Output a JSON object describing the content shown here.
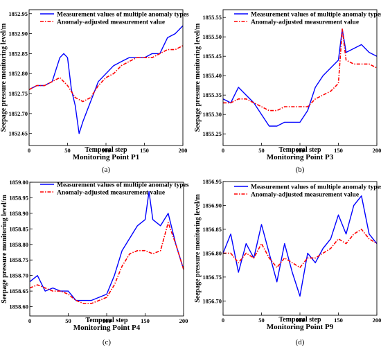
{
  "chart_data": [
    {
      "type": "line",
      "label": "(a)",
      "title": "Monitoring Point P1",
      "xlabel": "Temporal step",
      "ylabel": "Seepage pressure monitoring level/m",
      "xlim": [
        0,
        200
      ],
      "ylim": [
        1852.62,
        1852.96
      ],
      "xticks": [
        0,
        50,
        100,
        150,
        200
      ],
      "yticks": [
        1852.65,
        1852.7,
        1852.75,
        1852.8,
        1852.85,
        1852.9,
        1852.95
      ],
      "ytick_labels": [
        "1852.65",
        "1852.70",
        "1852.75",
        "1852.80",
        "1852.85",
        "1852.90",
        "1852.95"
      ],
      "series": [
        {
          "name": "Measurement values of multiple anomaly types",
          "color": "#0000ff",
          "style": "solid",
          "x": [
            0,
            10,
            20,
            30,
            40,
            45,
            50,
            55,
            60,
            65,
            70,
            80,
            90,
            100,
            110,
            120,
            130,
            140,
            150,
            160,
            170,
            180,
            190,
            200
          ],
          "y": [
            1852.76,
            1852.77,
            1852.77,
            1852.78,
            1852.84,
            1852.85,
            1852.84,
            1852.76,
            1852.72,
            1852.65,
            1852.68,
            1852.73,
            1852.78,
            1852.8,
            1852.82,
            1852.83,
            1852.84,
            1852.84,
            1852.84,
            1852.85,
            1852.85,
            1852.89,
            1852.9,
            1852.92
          ]
        },
        {
          "name": "Anomaly-adjusted measurement value",
          "color": "#ff0000",
          "style": "dashdot",
          "x": [
            0,
            10,
            20,
            30,
            40,
            50,
            60,
            70,
            80,
            90,
            100,
            110,
            120,
            130,
            140,
            150,
            160,
            170,
            180,
            190,
            200
          ],
          "y": [
            1852.76,
            1852.77,
            1852.77,
            1852.78,
            1852.79,
            1852.77,
            1852.74,
            1852.73,
            1852.74,
            1852.77,
            1852.79,
            1852.8,
            1852.82,
            1852.83,
            1852.84,
            1852.84,
            1852.84,
            1852.85,
            1852.86,
            1852.86,
            1852.87
          ]
        }
      ]
    },
    {
      "type": "line",
      "label": "(b)",
      "title": "Monitoring Point P3",
      "xlabel": "Temporal step",
      "ylabel": "Seepage pressure monitoring level/m",
      "xlim": [
        0,
        200
      ],
      "ylim": [
        1855.22,
        1855.57
      ],
      "xticks": [
        0,
        50,
        100,
        150,
        200
      ],
      "yticks": [
        1855.25,
        1855.3,
        1855.35,
        1855.4,
        1855.45,
        1855.5,
        1855.55
      ],
      "ytick_labels": [
        "1855.25",
        "1855.30",
        "1855.35",
        "1855.40",
        "1855.45",
        "1855.50",
        "1855.55"
      ],
      "series": [
        {
          "name": "Measurement values of multiple anomaly types",
          "color": "#0000ff",
          "style": "solid",
          "x": [
            0,
            10,
            20,
            30,
            40,
            50,
            60,
            70,
            80,
            90,
            100,
            110,
            120,
            130,
            140,
            150,
            155,
            160,
            170,
            180,
            190,
            200
          ],
          "y": [
            1855.34,
            1855.33,
            1855.37,
            1855.35,
            1855.33,
            1855.3,
            1855.27,
            1855.27,
            1855.28,
            1855.28,
            1855.28,
            1855.31,
            1855.37,
            1855.4,
            1855.42,
            1855.44,
            1855.52,
            1855.46,
            1855.47,
            1855.48,
            1855.46,
            1855.45
          ]
        },
        {
          "name": "Anomaly-adjusted measurement value",
          "color": "#ff0000",
          "style": "dashdot",
          "x": [
            0,
            10,
            20,
            30,
            40,
            50,
            60,
            70,
            80,
            90,
            100,
            110,
            120,
            130,
            140,
            150,
            155,
            160,
            170,
            180,
            190,
            200
          ],
          "y": [
            1855.33,
            1855.33,
            1855.34,
            1855.34,
            1855.33,
            1855.32,
            1855.31,
            1855.31,
            1855.32,
            1855.32,
            1855.32,
            1855.32,
            1855.34,
            1855.35,
            1855.36,
            1855.38,
            1855.52,
            1855.44,
            1855.43,
            1855.43,
            1855.43,
            1855.42
          ]
        }
      ]
    },
    {
      "type": "line",
      "label": "(c)",
      "title": "Monitoring Point P4",
      "xlabel": "Temporal step",
      "ylabel": "Seepage pressure monitoring level/m",
      "xlim": [
        0,
        200
      ],
      "ylim": [
        1858.57,
        1859.0
      ],
      "xticks": [
        0,
        50,
        100,
        150,
        200
      ],
      "yticks": [
        1858.6,
        1858.65,
        1858.7,
        1858.75,
        1858.8,
        1858.85,
        1858.9,
        1858.95,
        1859.0
      ],
      "ytick_labels": [
        "1858.60",
        "1858.65",
        "1858.70",
        "1858.75",
        "1858.80",
        "1858.85",
        "1858.90",
        "1858.95",
        "1859.00"
      ],
      "series": [
        {
          "name": "Measurement values of multiple anomaly types",
          "color": "#0000ff",
          "style": "solid",
          "x": [
            0,
            10,
            20,
            30,
            40,
            50,
            60,
            70,
            80,
            90,
            100,
            110,
            120,
            130,
            140,
            150,
            155,
            160,
            170,
            180,
            190,
            200
          ],
          "y": [
            1858.68,
            1858.7,
            1858.65,
            1858.66,
            1858.65,
            1858.65,
            1858.62,
            1858.62,
            1858.62,
            1858.63,
            1858.64,
            1858.7,
            1858.78,
            1858.82,
            1858.86,
            1858.88,
            1858.97,
            1858.88,
            1858.86,
            1858.9,
            1858.8,
            1858.72
          ]
        },
        {
          "name": "Anomaly-adjusted measurement value",
          "color": "#ff0000",
          "style": "dashdot",
          "x": [
            0,
            10,
            20,
            30,
            40,
            50,
            60,
            70,
            80,
            90,
            100,
            110,
            120,
            130,
            140,
            150,
            160,
            170,
            180,
            190,
            200
          ],
          "y": [
            1858.66,
            1858.67,
            1858.66,
            1858.65,
            1858.65,
            1858.64,
            1858.62,
            1858.61,
            1858.61,
            1858.62,
            1858.63,
            1858.67,
            1858.73,
            1858.77,
            1858.78,
            1858.78,
            1858.77,
            1858.78,
            1858.87,
            1858.8,
            1858.72
          ]
        }
      ]
    },
    {
      "type": "line",
      "label": "(d)",
      "title": "Monitoring Point P9",
      "xlabel": "Temporal step",
      "ylabel": "Seepage pressure monitoring level/m",
      "xlim": [
        0,
        200
      ],
      "ylim": [
        1856.67,
        1856.95
      ],
      "xticks": [
        0,
        50,
        100,
        150,
        200
      ],
      "yticks": [
        1856.7,
        1856.75,
        1856.8,
        1856.85,
        1856.9,
        1856.95
      ],
      "ytick_labels": [
        "1856.70",
        "1856.75",
        "1856.80",
        "1856.85",
        "1856.90",
        "1856.95"
      ],
      "series": [
        {
          "name": "Measurement values of multiple anomaly types",
          "color": "#0000ff",
          "style": "solid",
          "x": [
            0,
            10,
            20,
            30,
            40,
            50,
            60,
            70,
            80,
            90,
            100,
            110,
            120,
            130,
            140,
            150,
            160,
            170,
            180,
            190,
            200
          ],
          "y": [
            1856.8,
            1856.84,
            1856.76,
            1856.82,
            1856.79,
            1856.86,
            1856.8,
            1856.74,
            1856.82,
            1856.76,
            1856.71,
            1856.8,
            1856.78,
            1856.81,
            1856.83,
            1856.88,
            1856.84,
            1856.9,
            1856.92,
            1856.84,
            1856.82
          ]
        },
        {
          "name": "Anomaly-adjusted measurement value",
          "color": "#ff0000",
          "style": "dashdot",
          "x": [
            0,
            10,
            20,
            30,
            40,
            50,
            60,
            70,
            80,
            90,
            100,
            110,
            120,
            130,
            140,
            150,
            160,
            170,
            180,
            190,
            200
          ],
          "y": [
            1856.8,
            1856.8,
            1856.78,
            1856.8,
            1856.79,
            1856.82,
            1856.79,
            1856.77,
            1856.79,
            1856.78,
            1856.77,
            1856.79,
            1856.79,
            1856.8,
            1856.81,
            1856.83,
            1856.82,
            1856.84,
            1856.85,
            1856.83,
            1856.82
          ]
        }
      ]
    }
  ]
}
